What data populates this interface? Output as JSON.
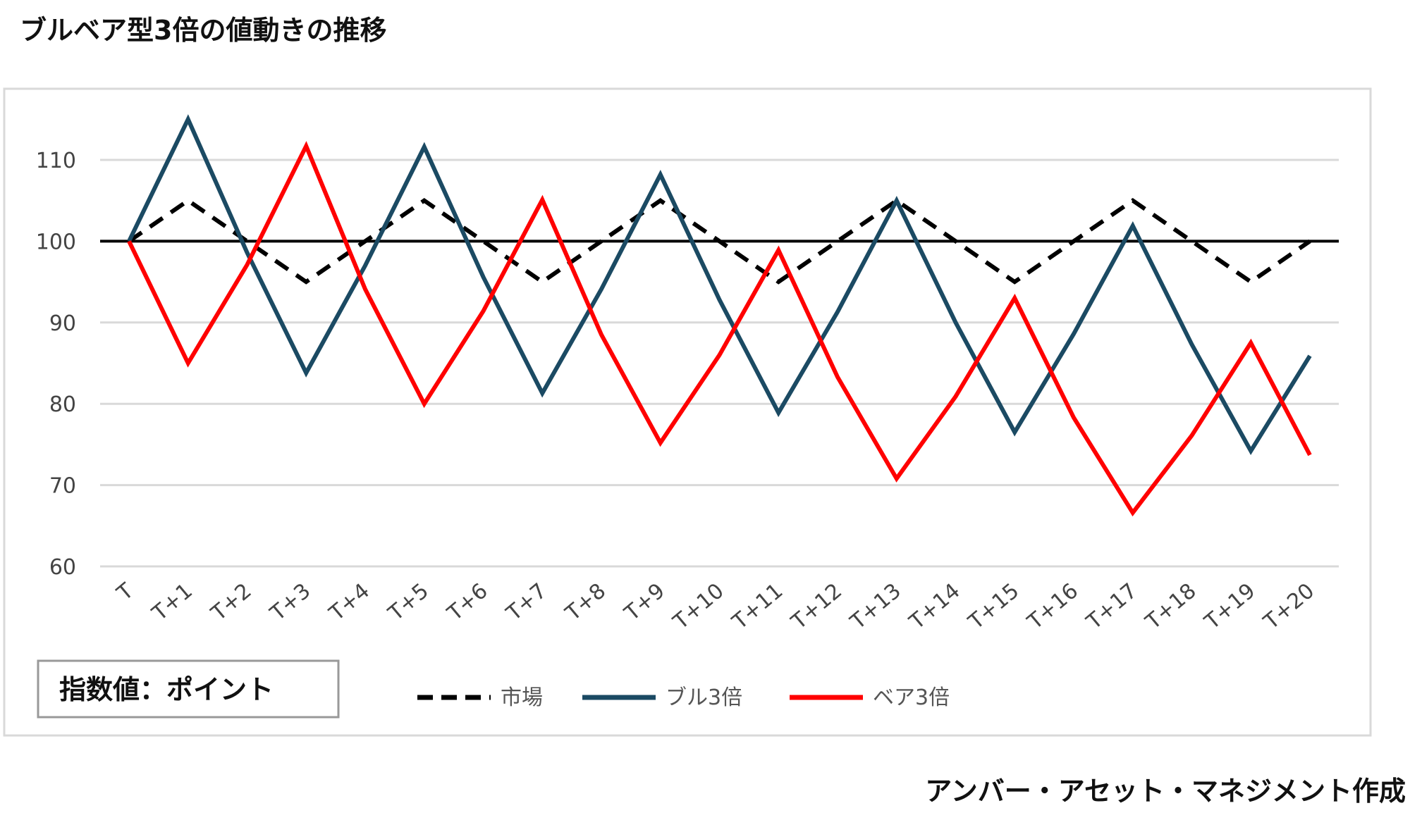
{
  "chart_data": {
    "type": "line",
    "title": "ブルベア型3倍の値動きの推移",
    "credit": "アンバー・アセット・マネジメント作成",
    "unit_label": "指数値：ポイント",
    "xlabel": "",
    "ylabel": "",
    "categories": [
      "T",
      "T+1",
      "T+2",
      "T+3",
      "T+4",
      "T+5",
      "T+6",
      "T+7",
      "T+8",
      "T+9",
      "T+10",
      "T+11",
      "T+12",
      "T+13",
      "T+14",
      "T+15",
      "T+16",
      "T+17",
      "T+18",
      "T+19",
      "T+20"
    ],
    "yticks": [
      60,
      70,
      80,
      90,
      100,
      110
    ],
    "ylim": [
      60,
      117
    ],
    "reference_line": 100,
    "grid": true,
    "legend_position": "bottom",
    "series": [
      {
        "name": "市場",
        "color": "#000000",
        "dash": true,
        "values": [
          100,
          105,
          100,
          95,
          100,
          105,
          100,
          95,
          100,
          105,
          100,
          95,
          100,
          105,
          100,
          95,
          100,
          105,
          100,
          95,
          100
        ]
      },
      {
        "name": "ブル3倍",
        "color": "#1b4a63",
        "dash": false,
        "values": [
          100,
          115,
          98.6,
          83.8,
          97.0,
          111.6,
          95.6,
          81.3,
          94.1,
          108.2,
          92.8,
          78.9,
          91.3,
          105.0,
          90.0,
          76.5,
          88.6,
          101.9,
          87.3,
          74.2,
          85.9
        ]
      },
      {
        "name": "ベア3倍",
        "color": "#ff0000",
        "dash": false,
        "values": [
          100,
          85,
          97.1,
          111.7,
          94.1,
          80.0,
          91.4,
          105.1,
          88.5,
          75.2,
          86.0,
          98.9,
          83.3,
          70.8,
          80.9,
          93.0,
          78.3,
          66.6,
          76.1,
          87.5,
          73.7
        ]
      }
    ]
  }
}
